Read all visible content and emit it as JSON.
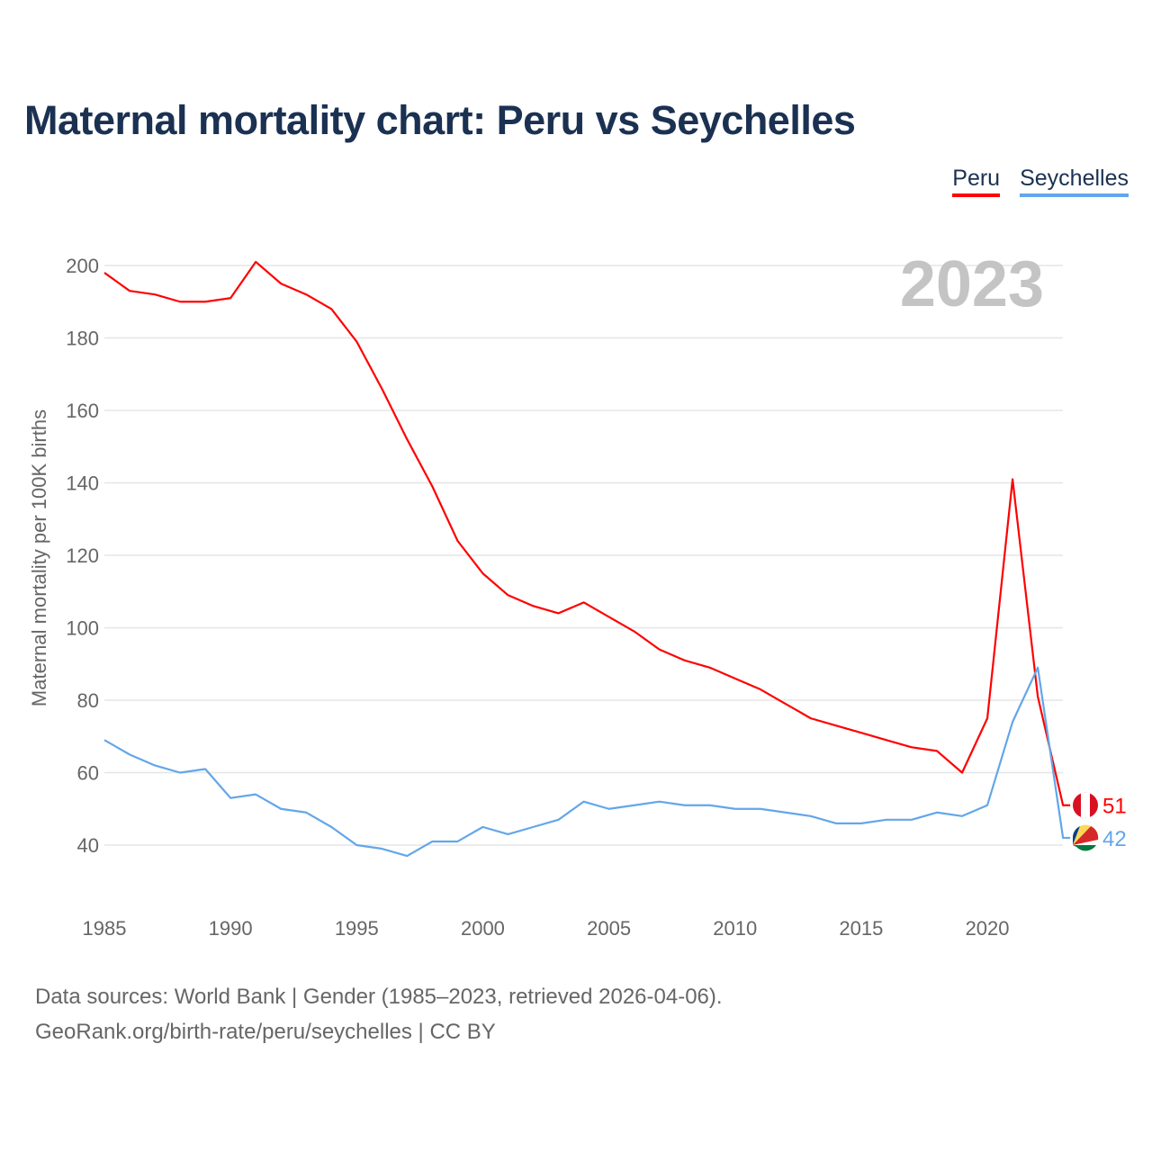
{
  "chart_data": {
    "type": "line",
    "title": "Maternal mortality chart: Peru vs Seychelles",
    "xlabel": "",
    "ylabel": "Maternal mortality per 100K births",
    "year_label": "2023",
    "xlim": [
      1985,
      2023
    ],
    "ylim": [
      25,
      205
    ],
    "x_ticks": [
      1985,
      1990,
      1995,
      2000,
      2005,
      2010,
      2015,
      2020
    ],
    "y_ticks": [
      40,
      60,
      80,
      100,
      120,
      140,
      160,
      180,
      200
    ],
    "grid": true,
    "legend_position": "top-right",
    "x": [
      1985,
      1986,
      1987,
      1988,
      1989,
      1990,
      1991,
      1992,
      1993,
      1994,
      1995,
      1996,
      1997,
      1998,
      1999,
      2000,
      2001,
      2002,
      2003,
      2004,
      2005,
      2006,
      2007,
      2008,
      2009,
      2010,
      2011,
      2012,
      2013,
      2014,
      2015,
      2016,
      2017,
      2018,
      2019,
      2020,
      2021,
      2022,
      2023
    ],
    "series": [
      {
        "name": "Peru",
        "color": "#ff0000",
        "end_label": "51",
        "values": [
          198,
          193,
          192,
          190,
          190,
          191,
          201,
          195,
          192,
          188,
          179,
          166,
          152,
          139,
          124,
          115,
          109,
          106,
          104,
          107,
          103,
          99,
          94,
          91,
          89,
          86,
          83,
          79,
          75,
          73,
          71,
          69,
          67,
          66,
          60,
          75,
          141,
          81,
          51
        ]
      },
      {
        "name": "Seychelles",
        "color": "#63a6ea",
        "end_label": "42",
        "values": [
          69,
          65,
          62,
          60,
          61,
          53,
          54,
          50,
          49,
          45,
          40,
          39,
          37,
          41,
          41,
          45,
          43,
          45,
          47,
          52,
          50,
          51,
          52,
          51,
          51,
          50,
          50,
          49,
          48,
          46,
          46,
          47,
          47,
          49,
          48,
          51,
          74,
          89,
          42
        ]
      }
    ]
  },
  "footer": {
    "line1": "Data sources: World Bank | Gender (1985–2023, retrieved 2026-04-06).",
    "line2": "GeoRank.org/birth-rate/peru/seychelles | CC BY"
  }
}
